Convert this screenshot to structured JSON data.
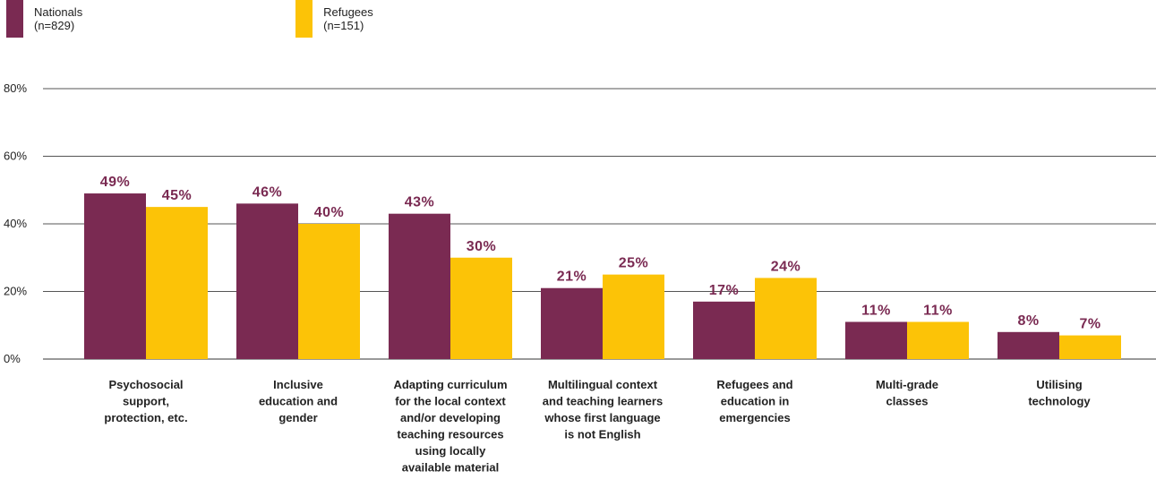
{
  "chart_data": {
    "type": "bar",
    "categories": [
      [
        "Psychosocial",
        "support,",
        "protection, etc."
      ],
      [
        "Inclusive",
        "education and",
        "gender"
      ],
      [
        "Adapting curriculum",
        "for the local context",
        "and/or developing",
        "teaching resources",
        "using locally",
        "available material"
      ],
      [
        "Multilingual context",
        "and teaching learners",
        "whose first language",
        "is not English"
      ],
      [
        "Refugees and",
        "education in",
        "emergencies"
      ],
      [
        "Multi-grade",
        "classes"
      ],
      [
        "Utilising",
        "technology"
      ]
    ],
    "series": [
      {
        "name": "Nationals (n=829)",
        "color": "#7a2a52",
        "values": [
          49,
          46,
          43,
          21,
          17,
          11,
          8
        ],
        "labels": [
          "49%",
          "46%",
          "43%",
          "21%",
          "17%",
          "11%",
          "8%"
        ]
      },
      {
        "name": "Refugees (n=151)",
        "color": "#fcc307",
        "values": [
          45,
          40,
          30,
          25,
          24,
          11,
          7
        ],
        "labels": [
          "45%",
          "40%",
          "30%",
          "25%",
          "24%",
          "11%",
          "7%"
        ]
      }
    ],
    "y_ticks": [
      "0%",
      "20%",
      "40%",
      "60%",
      "80%"
    ],
    "y_tick_values": [
      0,
      20,
      40,
      60,
      80
    ],
    "ylim": [
      0,
      80
    ],
    "grid": true,
    "legend_position": "top-left",
    "value_label_color": "#7a2a52"
  }
}
